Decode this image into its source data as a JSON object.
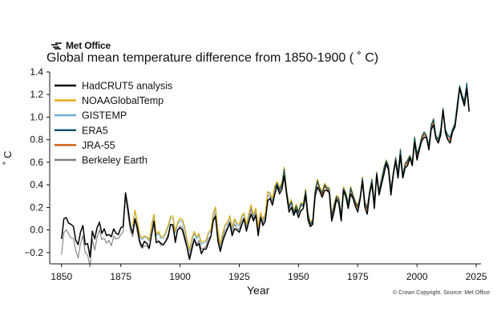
{
  "brand": {
    "name": "Met Office",
    "icon": "met-office-logo-icon"
  },
  "credit": "© Crown Copyright. Source: Met Office",
  "chart_data": {
    "type": "line",
    "title": "Global mean temperature difference from 1850-1900 ( ˚ C)",
    "xlabel": "Year",
    "ylabel": "˚ C",
    "xlim": [
      1845,
      2027
    ],
    "ylim": [
      -0.3,
      1.4
    ],
    "x_ticks": [
      1850,
      1875,
      1900,
      1925,
      1950,
      1975,
      2000,
      2025
    ],
    "y_ticks": [
      -0.2,
      0.0,
      0.2,
      0.4,
      0.6,
      0.8,
      1.0,
      1.2,
      1.4
    ],
    "y_tick_labels": [
      "−0.2",
      "0.0",
      "0.2",
      "0.4",
      "0.6",
      "0.8",
      "1.0",
      "1.2",
      "1.4"
    ],
    "grid": false,
    "legend_position": "top-left",
    "hadcrut_years": [
      1850,
      2022
    ],
    "hadcrut_values": [
      -0.08,
      0.1,
      0.11,
      0.06,
      0.05,
      0.03,
      -0.09,
      -0.13,
      -0.02,
      0.04,
      -0.13,
      -0.12,
      -0.24,
      -0.01,
      -0.08,
      0.02,
      0.07,
      -0.03,
      0.01,
      -0.05,
      -0.04,
      -0.06,
      0.01,
      -0.03,
      -0.04,
      0.02,
      0.03,
      0.33,
      0.2,
      0.04,
      -0.03,
      0.1,
      0.02,
      -0.1,
      -0.15,
      -0.1,
      -0.12,
      -0.16,
      -0.04,
      0.08,
      -0.11,
      -0.1,
      -0.12,
      -0.13,
      -0.1,
      -0.06,
      0.05,
      0.04,
      -0.11,
      0.0,
      0.02,
      0.0,
      -0.08,
      -0.16,
      -0.26,
      -0.17,
      -0.08,
      -0.14,
      -0.12,
      -0.21,
      -0.17,
      -0.17,
      -0.11,
      -0.06,
      0.08,
      0.12,
      -0.1,
      -0.19,
      -0.1,
      -0.04,
      0.01,
      0.06,
      -0.05,
      0.01,
      0.0,
      -0.02,
      0.04,
      0.1,
      -0.01,
      0.07,
      0.14,
      0.08,
      0.13,
      -0.05,
      0.11,
      0.04,
      0.08,
      0.26,
      0.28,
      0.22,
      0.32,
      0.39,
      0.32,
      0.36,
      0.48,
      0.31,
      0.16,
      0.2,
      0.13,
      0.18,
      0.11,
      0.17,
      0.19,
      0.31,
      0.09,
      0.03,
      0.05,
      0.3,
      0.38,
      0.34,
      0.29,
      0.35,
      0.35,
      0.33,
      0.08,
      0.16,
      0.27,
      0.24,
      0.08,
      0.35,
      0.29,
      0.19,
      0.32,
      0.28,
      0.21,
      0.16,
      0.27,
      0.43,
      0.2,
      0.14,
      0.32,
      0.41,
      0.19,
      0.49,
      0.31,
      0.4,
      0.49,
      0.59,
      0.53,
      0.31,
      0.49,
      0.61,
      0.46,
      0.66,
      0.46,
      0.55,
      0.57,
      0.64,
      0.57,
      0.78,
      0.62,
      0.71,
      0.79,
      0.82,
      0.82,
      0.71,
      0.89,
      0.93,
      0.81,
      0.77,
      0.84,
      1.06,
      0.86,
      0.8,
      0.77,
      0.87,
      0.91,
      1.07,
      1.26,
      1.17,
      1.1,
      1.25,
      1.05
    ],
    "series": [
      {
        "name": "HadCRUT5 analysis",
        "color": "#000000",
        "offsets": [
          0,
          0,
          0,
          0
        ]
      },
      {
        "name": "NOAAGlobalTemp",
        "color": "#e6a800",
        "offsets": [
          0.01,
          0.09,
          0.06,
          0.03
        ]
      },
      {
        "name": "GISTEMP",
        "color": "#6aaed6",
        "offsets": [
          0.02,
          0.07,
          0.05,
          0.04
        ]
      },
      {
        "name": "ERA5",
        "color": "#0b4f6c",
        "offsets": [
          0.02,
          0.02,
          0.04,
          0.03
        ]
      },
      {
        "name": "JRA-55",
        "color": "#c9570a",
        "offsets": [
          0,
          0.02,
          0.03,
          0.01
        ]
      },
      {
        "name": "Berkeley Earth",
        "color": "#7f7f7f",
        "offsets": [
          -0.12,
          0.02,
          0.03,
          0.01
        ]
      }
    ]
  }
}
